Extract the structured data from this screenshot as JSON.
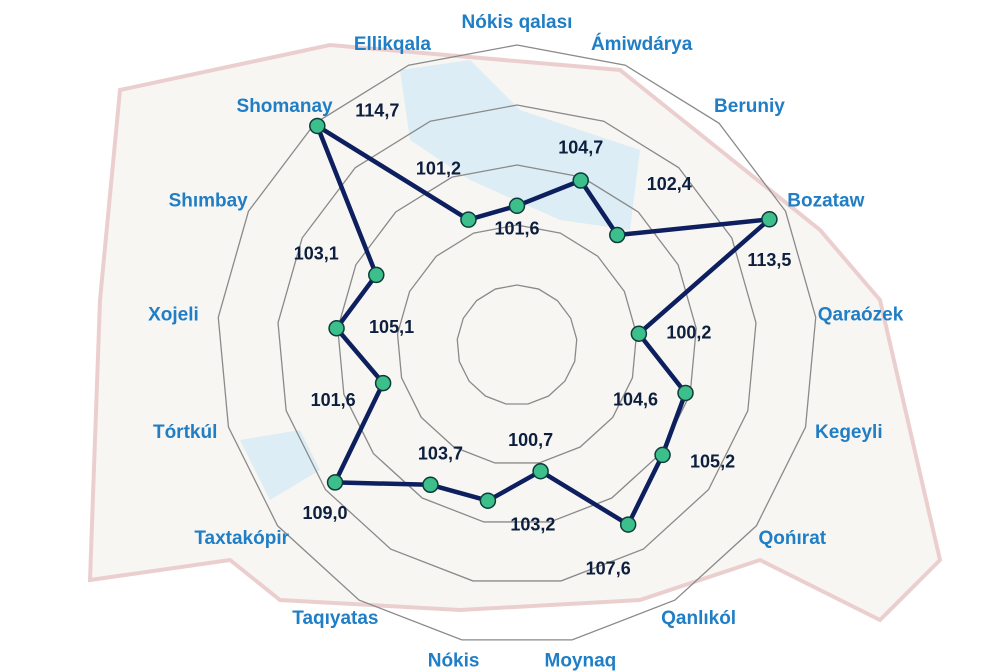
{
  "chart_data": {
    "type": "radar",
    "categories": [
      "Nókis qalası",
      "Ámiwdárya",
      "Beruniy",
      "Bozataw",
      "Qaraózek",
      "Kegeyli",
      "Qońırat",
      "Qanlıkól",
      "Moynaq",
      "Nókis",
      "Taqıyatas",
      "Taxtakópir",
      "Tórtkúl",
      "Xojeli",
      "Shımbay",
      "Shomanay",
      "Ellikqala"
    ],
    "values": [
      101.6,
      104.7,
      102.4,
      113.5,
      100.2,
      104.6,
      105.2,
      107.6,
      100.7,
      103.2,
      103.7,
      109.0,
      101.6,
      105.1,
      103.1,
      114.7,
      101.2
    ],
    "value_labels": [
      "101,6",
      "104,7",
      "102,4",
      "113,5",
      "100,2",
      "104,6",
      "105,2",
      "107,6",
      "100,7",
      "103,2",
      "103,7",
      "109,0",
      "101,6",
      "105,1",
      "103,1",
      "114,7",
      "101,2"
    ],
    "ylim": [
      90,
      115
    ],
    "yticks": [
      95,
      100,
      105,
      110,
      115
    ],
    "grid": true,
    "color": "#0d1f5e",
    "marker_color": "#3dbf8c",
    "label_color": "#1f7ec5"
  }
}
